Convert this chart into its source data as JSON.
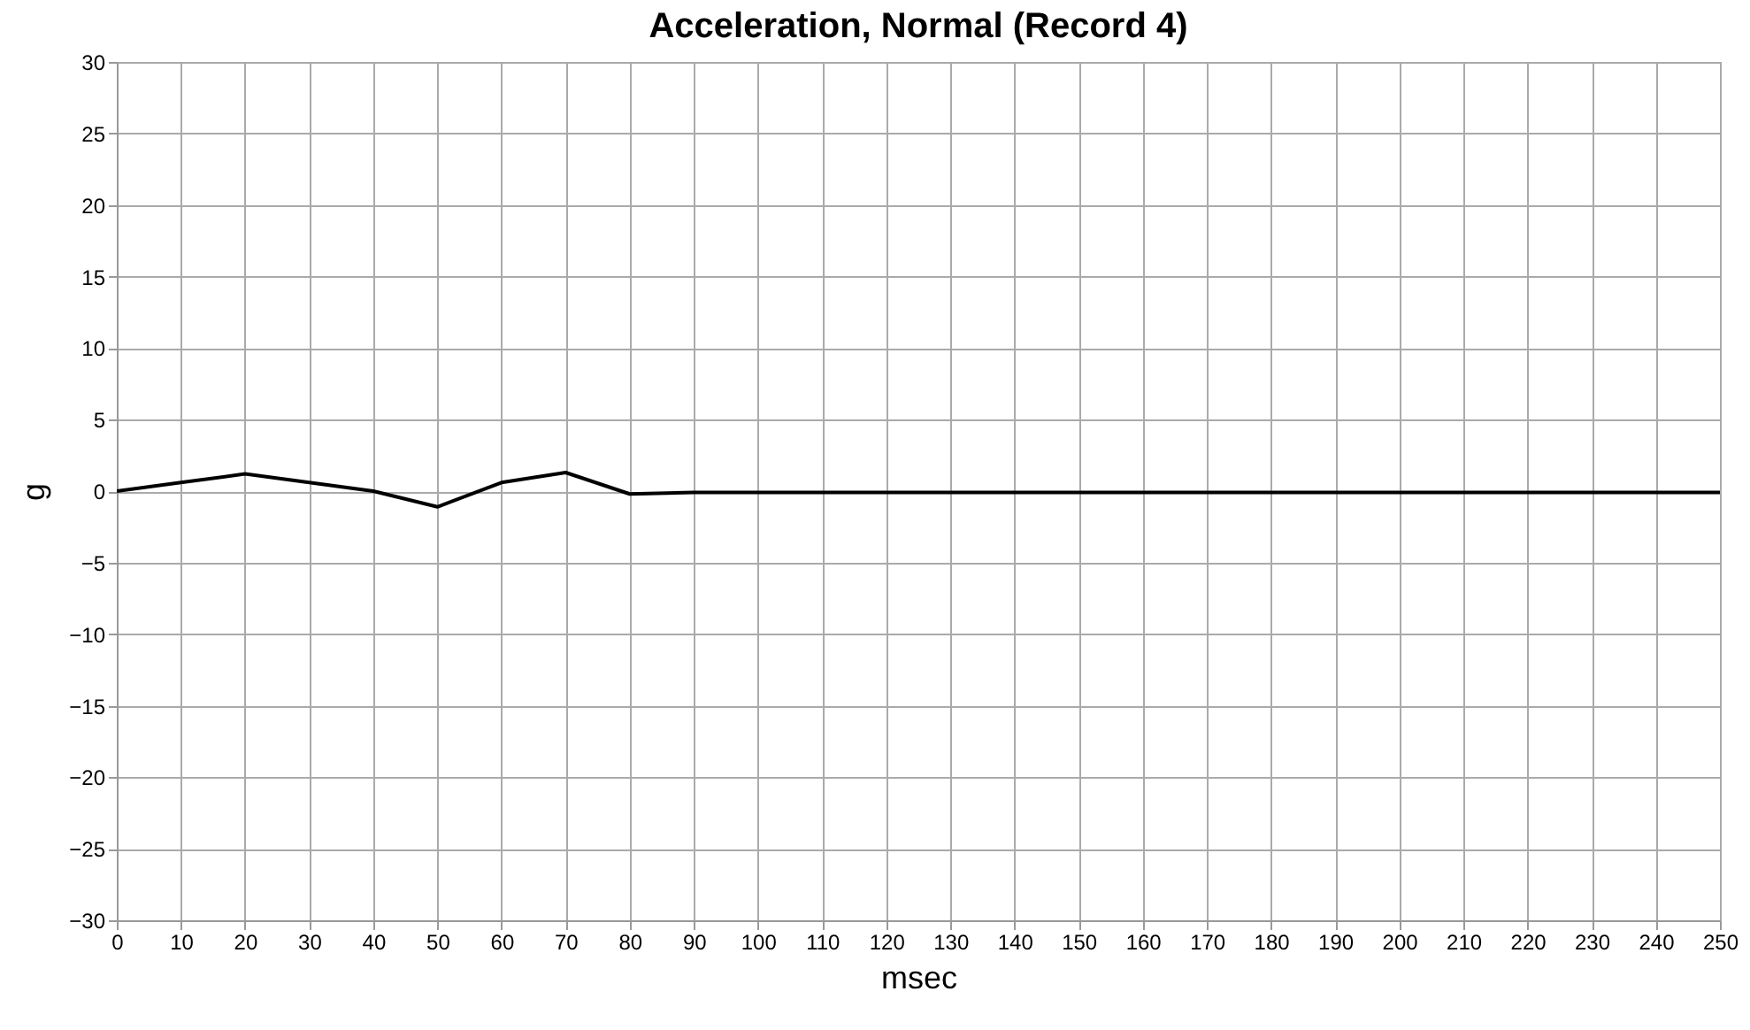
{
  "chart_data": {
    "type": "line",
    "title": "Acceleration, Normal (Record 4)",
    "xlabel": "msec",
    "ylabel": "g",
    "x": [
      0,
      10,
      20,
      30,
      40,
      50,
      60,
      70,
      80,
      90,
      250
    ],
    "series": [
      {
        "color": "#000000",
        "values": [
          0,
          0.6,
          1.2,
          0.6,
          0,
          -1.1,
          0.6,
          1.3,
          -0.2,
          -0.1,
          -0.1
        ]
      }
    ],
    "xlim": [
      0,
      250
    ],
    "xticks": [
      0,
      10,
      20,
      30,
      40,
      50,
      60,
      70,
      80,
      90,
      100,
      110,
      120,
      130,
      140,
      150,
      160,
      170,
      180,
      190,
      200,
      210,
      220,
      230,
      240,
      250
    ],
    "ylim": [
      -30,
      30
    ],
    "yticks": [
      -30,
      -25,
      -20,
      -15,
      -10,
      -5,
      0,
      5,
      10,
      15,
      20,
      25,
      30
    ],
    "grid": true,
    "marker": "none",
    "line_style": "solid"
  }
}
